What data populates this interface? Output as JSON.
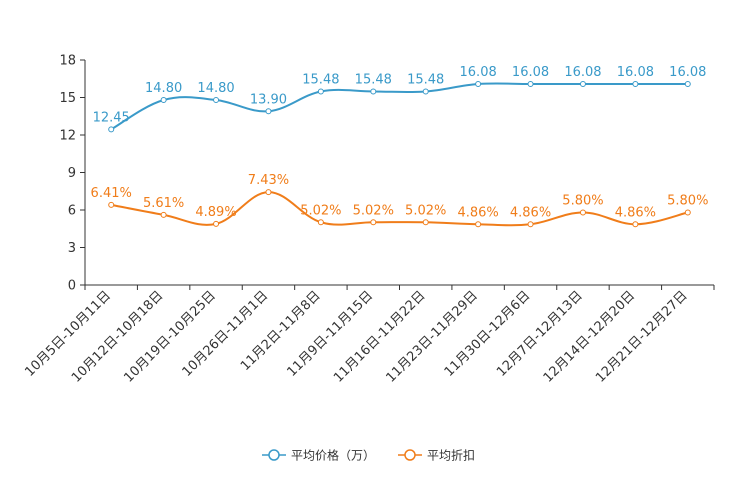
{
  "chart_data": {
    "type": "line",
    "title": "",
    "xlabel": "",
    "ylabel": "",
    "ylim": [
      0,
      18
    ],
    "yticks": [
      0,
      3,
      6,
      9,
      12,
      15,
      18
    ],
    "grid": false,
    "legend_position": "bottom",
    "categories": [
      "10月5日-10月11日",
      "10月12日-10月18日",
      "10月19日-10月25日",
      "10月26日-11月1日",
      "11月2日-11月8日",
      "11月9日-11月15日",
      "11月16日-11月22日",
      "11月23日-11月29日",
      "11月30日-12月6日",
      "12月7日-12月13日",
      "12月14日-12月20日",
      "12月21日-12月27日"
    ],
    "series": [
      {
        "name": "平均价格（万）",
        "color": "#3a9ac9",
        "values": [
          12.45,
          14.8,
          14.8,
          13.9,
          15.48,
          15.48,
          15.48,
          16.08,
          16.08,
          16.08,
          16.08,
          16.08
        ],
        "labels": [
          "12.45",
          "14.80",
          "14.80",
          "13.90",
          "15.48",
          "15.48",
          "15.48",
          "16.08",
          "16.08",
          "16.08",
          "16.08",
          "16.08"
        ]
      },
      {
        "name": "平均折扣",
        "color": "#f07d1a",
        "values": [
          6.41,
          5.61,
          4.89,
          7.43,
          5.02,
          5.02,
          5.02,
          4.86,
          4.86,
          5.8,
          4.86,
          5.8
        ],
        "labels": [
          "6.41%",
          "5.61%",
          "4.89%",
          "7.43%",
          "5.02%",
          "5.02%",
          "5.02%",
          "4.86%",
          "4.86%",
          "5.80%",
          "4.86%",
          "5.80%"
        ]
      }
    ]
  }
}
